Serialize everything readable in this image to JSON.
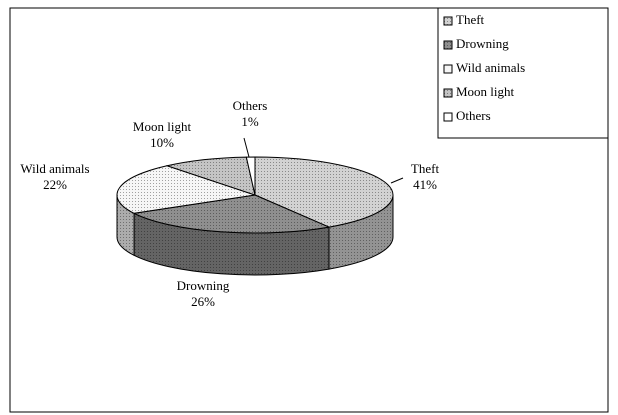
{
  "chart_data": {
    "type": "pie3d",
    "categories": [
      "Theft",
      "Drowning",
      "Wild animals",
      "Moon light",
      "Others"
    ],
    "values": [
      41,
      26,
      22,
      10,
      1
    ],
    "value_labels": [
      "41%",
      "26%",
      "22%",
      "10%",
      "1%"
    ],
    "colors": [
      "#d2d2d2",
      "#8f8f8f",
      "#f6f6f6",
      "#c4c4c4",
      "#ffffff"
    ],
    "legend": "top-right"
  }
}
